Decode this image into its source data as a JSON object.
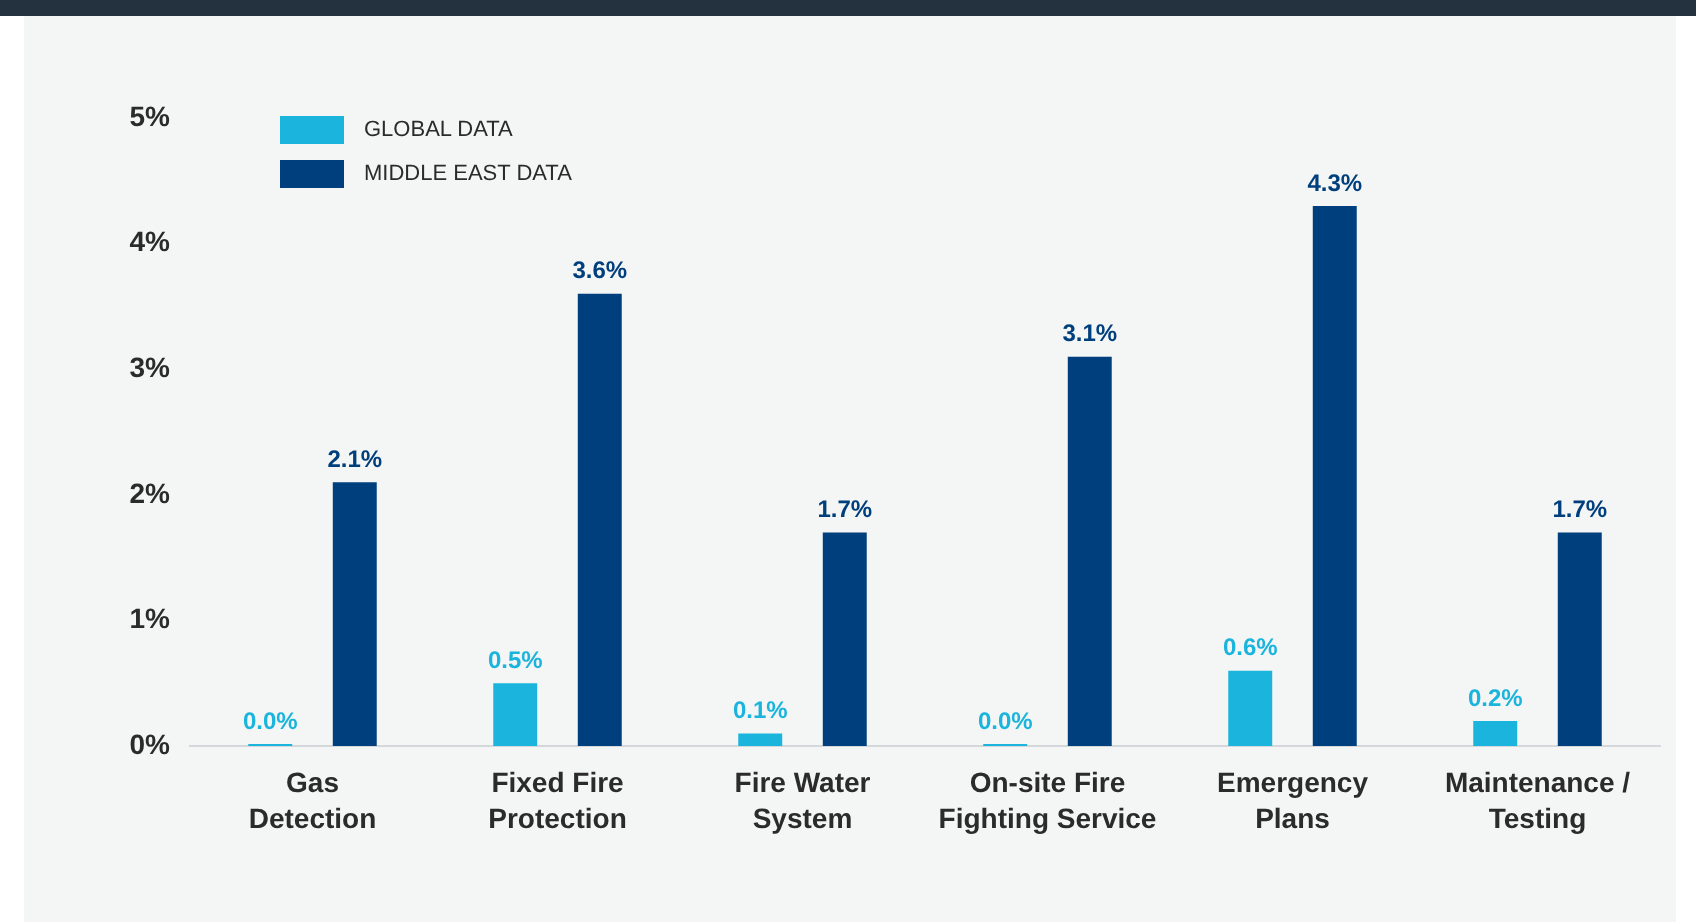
{
  "chart_data": {
    "type": "bar",
    "categories": [
      "Gas Detection",
      "Fixed Fire Protection",
      "Fire Water System",
      "On-site Fire Fighting Service",
      "Emergency Plans",
      "Maintenance / Testing"
    ],
    "series": [
      {
        "name": "GLOBAL DATA",
        "color": "#1ab4dc",
        "values": [
          0.0,
          0.5,
          0.1,
          0.0,
          0.6,
          0.2
        ],
        "value_labels": [
          "0.0%",
          "0.5%",
          "0.1%",
          "0.0%",
          "0.6%",
          "0.2%"
        ]
      },
      {
        "name": "MIDDLE EAST DATA",
        "color": "#003f7d",
        "values": [
          2.1,
          3.6,
          1.7,
          3.1,
          4.3,
          1.7
        ],
        "value_labels": [
          "2.1%",
          "3.6%",
          "1.7%",
          "3.1%",
          "4.3%",
          "1.7%"
        ]
      }
    ],
    "ylim": [
      0,
      5
    ],
    "yticks": [
      {
        "value": 0,
        "label": "0%"
      },
      {
        "value": 1,
        "label": "1%"
      },
      {
        "value": 2,
        "label": "2%"
      },
      {
        "value": 3,
        "label": "3%"
      },
      {
        "value": 4,
        "label": "4%"
      },
      {
        "value": 5,
        "label": "5%"
      }
    ],
    "grid": false,
    "legend": "top left"
  }
}
